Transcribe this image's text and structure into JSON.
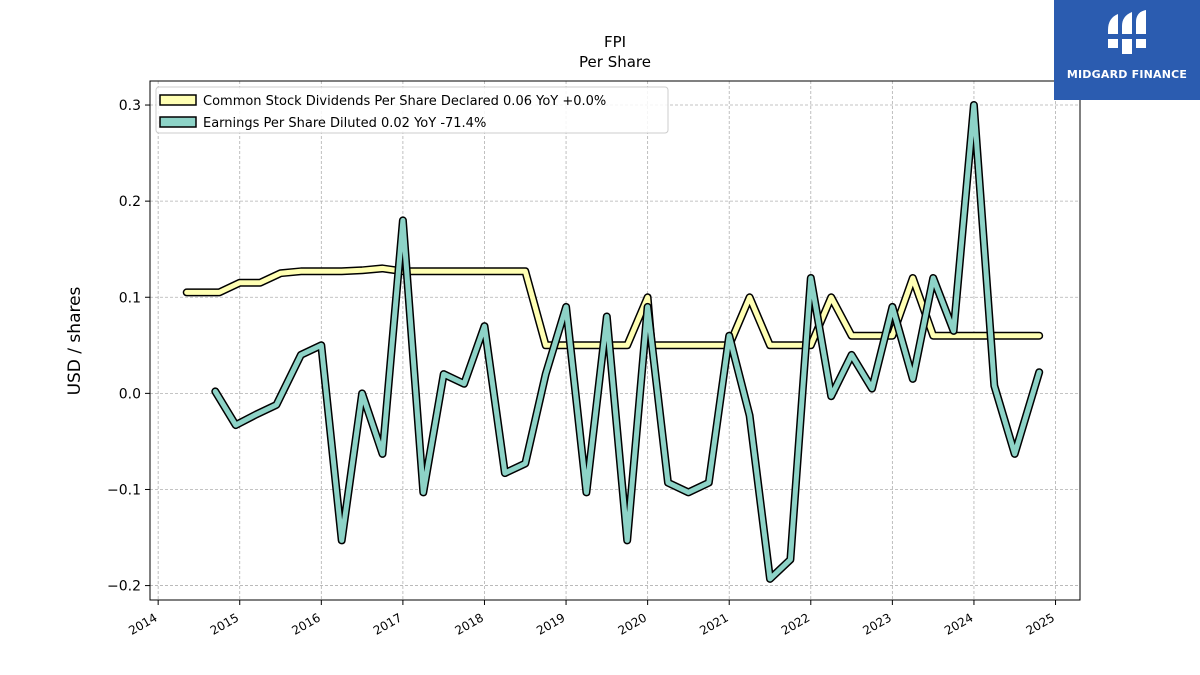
{
  "chart_data": {
    "type": "line",
    "title": "FPI",
    "subtitle": "Per  Share",
    "ylabel": "USD / shares",
    "xlabel": "",
    "xlim": [
      2013.9,
      2025.3
    ],
    "ylim": [
      -0.215,
      0.325
    ],
    "grid": true,
    "legend_position": "top-left",
    "x_ticks": [
      "2014",
      "2015",
      "2016",
      "2017",
      "2018",
      "2019",
      "2020",
      "2021",
      "2022",
      "2023",
      "2024",
      "2025"
    ],
    "y_ticks": [
      "−0.2",
      "−0.1",
      "0.0",
      "0.1",
      "0.2",
      "0.3"
    ],
    "series": [
      {
        "name": "Common Stock Dividends Per Share Declared",
        "legend_label": "Common Stock Dividends Per Share Declared  0.06 YoY +0.0%",
        "color": "#ffffb3",
        "x": [
          2014.35,
          2014.5,
          2014.75,
          2015.0,
          2015.25,
          2015.5,
          2015.75,
          2016.0,
          2016.25,
          2016.5,
          2016.75,
          2017.0,
          2017.25,
          2017.5,
          2017.75,
          2018.0,
          2018.25,
          2018.5,
          2018.75,
          2019.0,
          2019.25,
          2019.5,
          2019.75,
          2020.0,
          2020.05,
          2020.25,
          2020.5,
          2020.75,
          2021.0,
          2021.25,
          2021.5,
          2021.75,
          2022.0,
          2022.25,
          2022.5,
          2022.75,
          2023.0,
          2023.25,
          2023.5,
          2023.75,
          2024.0,
          2024.25,
          2024.5,
          2024.8
        ],
        "values": [
          0.105,
          0.105,
          0.105,
          0.115,
          0.115,
          0.125,
          0.127,
          0.127,
          0.127,
          0.128,
          0.13,
          0.127,
          0.127,
          0.127,
          0.127,
          0.127,
          0.127,
          0.127,
          0.05,
          0.05,
          0.05,
          0.05,
          0.05,
          0.1,
          0.05,
          0.05,
          0.05,
          0.05,
          0.05,
          0.1,
          0.05,
          0.05,
          0.05,
          0.1,
          0.06,
          0.06,
          0.06,
          0.12,
          0.06,
          0.06,
          0.06,
          0.06,
          0.06,
          0.06
        ]
      },
      {
        "name": "Earnings Per Share Diluted",
        "legend_label": "Earnings Per Share Diluted  0.02 YoY -71.4%",
        "color": "#8dd3c7",
        "x": [
          2014.7,
          2014.95,
          2015.2,
          2015.45,
          2015.75,
          2016.0,
          2016.25,
          2016.5,
          2016.75,
          2017.0,
          2017.25,
          2017.5,
          2017.75,
          2018.0,
          2018.25,
          2018.5,
          2018.75,
          2019.0,
          2019.25,
          2019.5,
          2019.75,
          2020.0,
          2020.25,
          2020.5,
          2020.75,
          2021.0,
          2021.25,
          2021.5,
          2021.75,
          2022.0,
          2022.25,
          2022.5,
          2022.75,
          2023.0,
          2023.25,
          2023.5,
          2023.75,
          2024.0,
          2024.25,
          2024.5,
          2024.8
        ],
        "values": [
          0.002,
          -0.033,
          -0.022,
          -0.012,
          0.04,
          0.05,
          -0.153,
          0.0,
          -0.063,
          0.18,
          -0.103,
          0.02,
          0.01,
          0.07,
          -0.083,
          -0.073,
          0.02,
          0.09,
          -0.103,
          0.08,
          -0.153,
          0.09,
          -0.093,
          -0.103,
          -0.093,
          0.06,
          -0.023,
          -0.193,
          -0.173,
          0.12,
          -0.003,
          0.04,
          0.005,
          0.09,
          0.015,
          0.12,
          0.065,
          0.3,
          0.008,
          -0.063,
          0.022
        ]
      }
    ]
  },
  "logo": {
    "text": "MIDGARD FINANCE",
    "color": "#2b5cb0",
    "icon": "midgard-logo-icon"
  }
}
